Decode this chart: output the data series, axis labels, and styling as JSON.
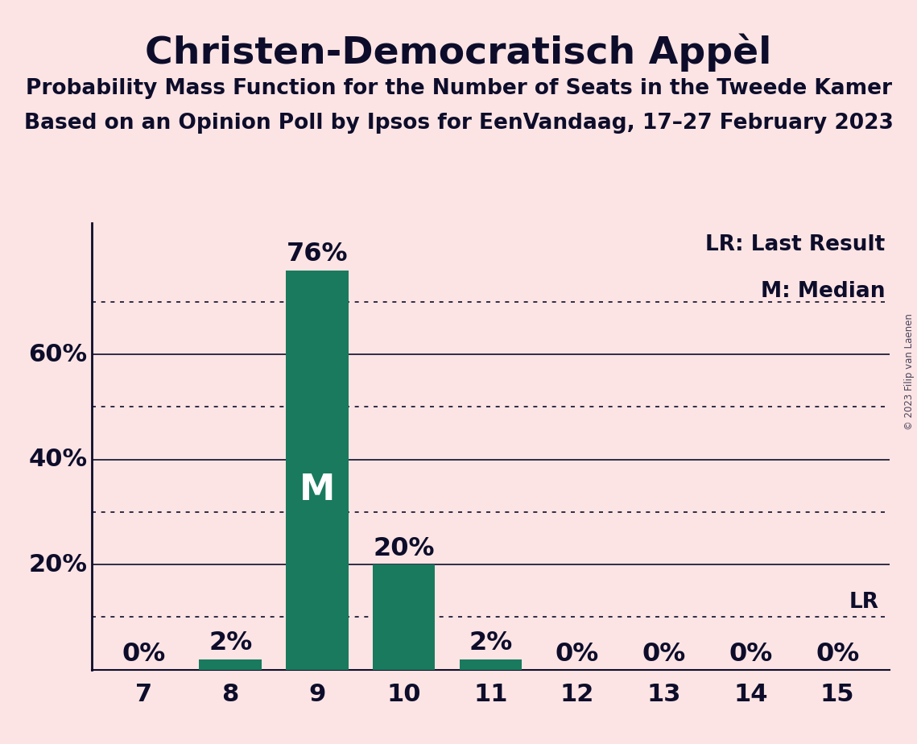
{
  "title": "Christen-Democratisch Appèl",
  "subtitle1": "Probability Mass Function for the Number of Seats in the Tweede Kamer",
  "subtitle2": "Based on an Opinion Poll by Ipsos for EenVandaag, 17–27 February 2023",
  "copyright": "© 2023 Filip van Laenen",
  "categories": [
    7,
    8,
    9,
    10,
    11,
    12,
    13,
    14,
    15
  ],
  "values": [
    0.0,
    0.02,
    0.76,
    0.2,
    0.02,
    0.0,
    0.0,
    0.0,
    0.0
  ],
  "bar_color": "#1a7a5e",
  "background_color": "#fce4e4",
  "text_color": "#0d0d2b",
  "median": 9,
  "last_result": 0.1,
  "last_result_label": "LR",
  "median_label": "M",
  "ylim": [
    0,
    0.85
  ],
  "dotted_ticks": [
    0.1,
    0.3,
    0.5,
    0.7
  ],
  "solid_ticks": [
    0.2,
    0.4,
    0.6
  ],
  "legend_lr": "LR: Last Result",
  "legend_m": "M: Median",
  "title_fontsize": 34,
  "subtitle_fontsize": 19,
  "tick_fontsize": 22,
  "bar_label_fontsize": 23,
  "legend_fontsize": 19,
  "median_label_fontsize": 32
}
